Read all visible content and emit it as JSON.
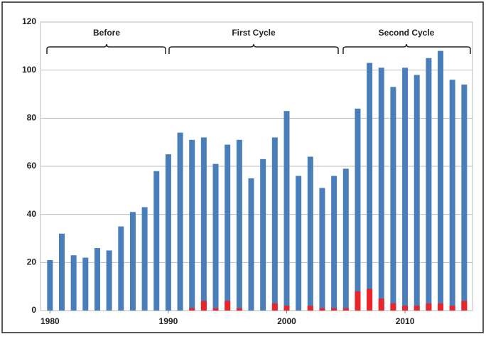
{
  "chart_data": {
    "type": "bar",
    "annotations": [
      "Before",
      "First Cycle",
      "Second Cycle"
    ],
    "x": [
      1980,
      1981,
      1982,
      1983,
      1984,
      1985,
      1986,
      1987,
      1988,
      1989,
      1990,
      1991,
      1992,
      1993,
      1994,
      1995,
      1996,
      1997,
      1998,
      1999,
      2000,
      2001,
      2002,
      2003,
      2004,
      2005,
      2006,
      2007,
      2008,
      2009,
      2010,
      2011,
      2012,
      2013,
      2014,
      2015
    ],
    "series": [
      {
        "color": "#4a7ebb",
        "values": [
          21,
          32,
          23,
          22,
          26,
          25,
          35,
          41,
          43,
          58,
          65,
          74,
          71,
          72,
          61,
          69,
          71,
          55,
          63,
          72,
          83,
          56,
          64,
          51,
          56,
          59,
          84,
          103,
          101,
          93,
          101,
          98,
          105,
          108,
          96,
          94
        ]
      },
      {
        "color": "#e8262a",
        "values": [
          0,
          0,
          0,
          0,
          0,
          0,
          0,
          0,
          0,
          0,
          0,
          0,
          1,
          4,
          1,
          4,
          1,
          0,
          0,
          3,
          2,
          0,
          2,
          1,
          1,
          1,
          8,
          9,
          5,
          3,
          2,
          2,
          3,
          3,
          2,
          4
        ]
      }
    ],
    "xlim": [
      1979.2,
      2015.7
    ],
    "xticks": [
      1980,
      1990,
      2000,
      2010
    ],
    "ylim": [
      0,
      120
    ],
    "yticks": [
      0,
      20,
      40,
      60,
      80,
      100,
      120
    ],
    "grid": true
  }
}
